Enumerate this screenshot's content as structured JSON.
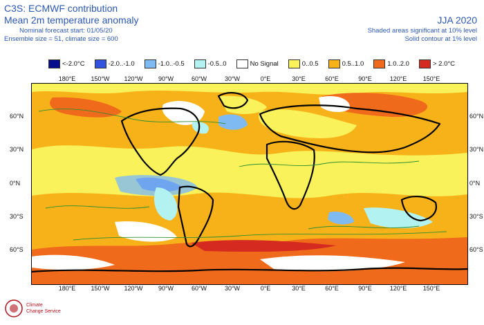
{
  "header": {
    "source": "C3S: ECMWF contribution",
    "product": "Mean 2m temperature anomaly",
    "start": "Nominal forecast start: 01/05/20",
    "ensemble": "Ensemble size = 51, climate size = 600",
    "period": "JJA 2020",
    "sig_shaded": "Shaded areas significant at 10% level",
    "sig_contour": "Solid contour at 1% level"
  },
  "legend": [
    {
      "label": "<-2.0°C",
      "color": "#060c8c"
    },
    {
      "label": "-2.0..-1.0",
      "color": "#3153e0"
    },
    {
      "label": "-1.0..-0.5",
      "color": "#7fbaf2"
    },
    {
      "label": "-0.5..0",
      "color": "#b2f2f0"
    },
    {
      "label": "No Signal",
      "color": "#ffffff"
    },
    {
      "label": "0..0.5",
      "color": "#f9f25a"
    },
    {
      "label": "0.5..1.0",
      "color": "#f7b21a"
    },
    {
      "label": "1.0..2.0",
      "color": "#f06a1b"
    },
    {
      "label": "> 2.0°C",
      "color": "#d42a1f"
    }
  ],
  "axes": {
    "lon_labels": [
      "180°E",
      "150°W",
      "120°W",
      "90°W",
      "60°W",
      "30°W",
      "0°E",
      "30°E",
      "60°E",
      "90°E",
      "120°E",
      "150°E"
    ],
    "lat_labels": [
      "60°N",
      "30°N",
      "0°N",
      "30°S",
      "60°S"
    ]
  },
  "logo": {
    "text_1": "Climate",
    "text_2": "Change Service"
  }
}
